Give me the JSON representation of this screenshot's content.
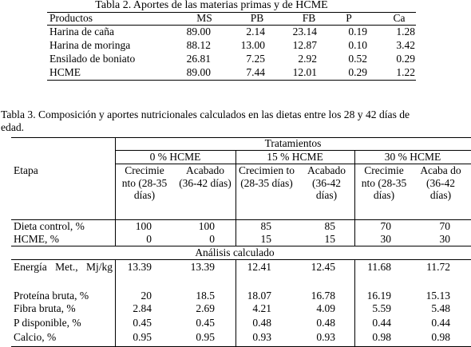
{
  "table2": {
    "caption": "Tabla 2. Aportes de las materias primas y de HCME",
    "headers": [
      "Productos",
      "MS",
      "PB",
      "FB",
      "P",
      "Ca"
    ],
    "rows": [
      [
        "Harina de caña",
        "89.00",
        "2.14",
        "23.14",
        "0.19",
        "1.28"
      ],
      [
        "Harina de moringa",
        "88.12",
        "13.00",
        "12.87",
        "0.10",
        "3.42"
      ],
      [
        "Ensilado de boniato",
        "26.81",
        "7.25",
        "2.92",
        "0.52",
        "0.29"
      ],
      [
        "HCME",
        "89.00",
        "7.44",
        "12.01",
        "0.29",
        "1.22"
      ]
    ]
  },
  "table3": {
    "caption_line1": "Tabla 3. Composición y aportes nutricionales calculados en las dietas entre los 28 y 42 días de",
    "caption_line2": "edad.",
    "tratamientos": "Tratamientos",
    "groups": [
      "0 % HCME",
      "15 % HCME",
      "30 % HCME"
    ],
    "etapa": "Etapa",
    "subheaders": [
      "Crecimie nto (28-35 días)",
      "Acabado (36-42 días)",
      "Crecimien to (28-35 días)",
      "Acabado (36-42 días)",
      "Crecimie nto (28-35 días)",
      "Acaba do (36-42 días)"
    ],
    "rows_top": [
      {
        "label": "Dieta control, %",
        "values": [
          "100",
          "100",
          "85",
          "85",
          "70",
          "70"
        ]
      },
      {
        "label": "HCME, %",
        "values": [
          "0",
          "0",
          "15",
          "15",
          "30",
          "30"
        ]
      }
    ],
    "analisis": "Análisis calculado",
    "rows_bottom": [
      {
        "label": "Energía Met., Mj/kg",
        "values": [
          "13.39",
          "13.39",
          "12.41",
          "12.45",
          "11.68",
          "11.72"
        ]
      },
      {
        "label": "Proteína bruta, %",
        "values": [
          "20",
          "18.5",
          "18.07",
          "16.78",
          "16.19",
          "15.13"
        ]
      },
      {
        "label": "Fibra bruta, %",
        "values": [
          "2.84",
          "2.69",
          "4.21",
          "4.09",
          "5.59",
          "5.48"
        ]
      },
      {
        "label": "P disponible, %",
        "values": [
          "0.45",
          "0.45",
          "0.48",
          "0.48",
          "0.44",
          "0.44"
        ]
      },
      {
        "label": "Calcio, %",
        "values": [
          "0.95",
          "0.95",
          "0.93",
          "0.93",
          "0.98",
          "0.98"
        ]
      }
    ]
  }
}
